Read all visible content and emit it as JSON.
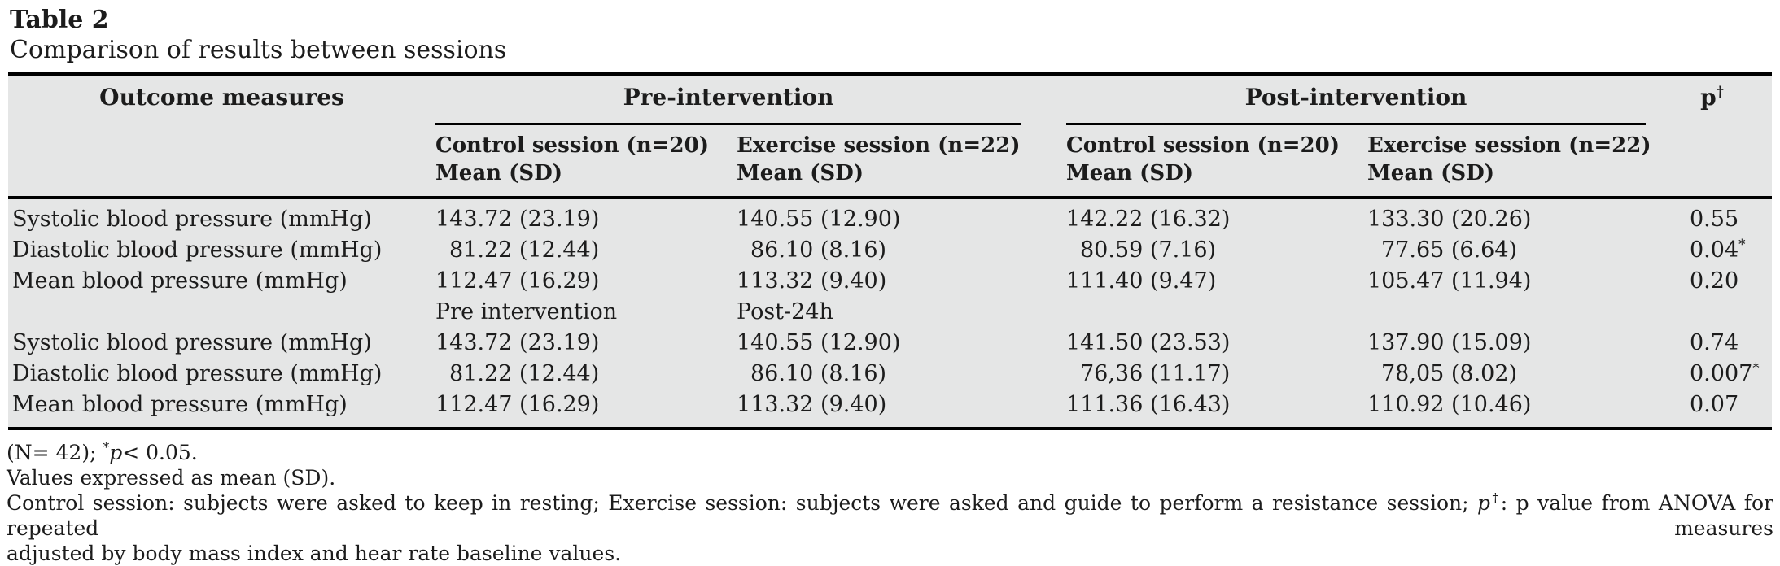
{
  "title": "Table 2",
  "subtitle": "Comparison of results between sessions",
  "colors": {
    "table_background": "#e5e6e6",
    "text": "#1c1c1c",
    "rule": "#000000"
  },
  "table": {
    "outcome_header": "Outcome measures",
    "pre_group_header": "Pre-intervention",
    "post_group_header": "Post-intervention",
    "p_header": "p",
    "p_header_sup": "†",
    "subheaders": {
      "pre_control_line1": "Control session (n=20)",
      "pre_control_line2": "Mean (SD)",
      "pre_exercise_line1": "Exercise session (n=22)",
      "pre_exercise_line2": "Mean (SD)",
      "post_control_line1": "Control session (n=20)",
      "post_control_line2": "Mean (SD)",
      "post_exercise_line1": "Exercise session (n=22)",
      "post_exercise_line2": "Mean (SD)"
    },
    "rows": [
      {
        "outcome": "Systolic blood pressure (mmHg)",
        "pre_control": "143.72 (23.19)",
        "pre_exercise": "140.55 (12.90)",
        "post_control": "142.22 (16.32)",
        "post_exercise": "133.30 (20.26)",
        "p": "0.55",
        "p_sup": ""
      },
      {
        "outcome": "Diastolic blood pressure (mmHg)",
        "pre_control": "81.22 (12.44)",
        "pre_exercise": "86.10 (8.16)",
        "post_control": "80.59 (7.16)",
        "post_exercise": "77.65 (6.64)",
        "p": "0.04",
        "p_sup": "*"
      },
      {
        "outcome": "Mean blood pressure (mmHg)",
        "pre_control": "112.47 (16.29)",
        "pre_exercise": "113.32 (9.40)",
        "post_control": "111.40 (9.47)",
        "post_exercise": "105.47 (11.94)",
        "p": "0.20",
        "p_sup": ""
      },
      {
        "outcome": "",
        "pre_control": "Pre intervention",
        "pre_exercise": "Post-24h",
        "post_control": "",
        "post_exercise": "",
        "p": "",
        "p_sup": ""
      },
      {
        "outcome": "Systolic blood pressure (mmHg)",
        "pre_control": "143.72 (23.19)",
        "pre_exercise": "140.55 (12.90)",
        "post_control": "141.50 (23.53)",
        "post_exercise": "137.90 (15.09)",
        "p": "0.74",
        "p_sup": ""
      },
      {
        "outcome": "Diastolic blood pressure (mmHg)",
        "pre_control": "81.22 (12.44)",
        "pre_exercise": "86.10 (8.16)",
        "post_control": "76,36 (11.17)",
        "post_exercise": "78,05 (8.02)",
        "p": "0.007",
        "p_sup": "*"
      },
      {
        "outcome": "Mean blood pressure (mmHg)",
        "pre_control": "112.47 (16.29)",
        "pre_exercise": "113.32 (9.40)",
        "post_control": "111.36 (16.43)",
        "post_exercise": "110.92 (10.46)",
        "p": "0.07",
        "p_sup": ""
      }
    ]
  },
  "footnotes": {
    "line1": {
      "pre": "(N= 42); ",
      "sup": "*",
      "italic": "p",
      "post": "< 0.05."
    },
    "line2": "Values expressed as mean (SD).",
    "line3a": {
      "pre": "Control session: subjects were asked to keep in resting; Exercise session: subjects were asked and guide to perform a resistance session; ",
      "italic": "p",
      "sup": "†",
      "post": ": p value from ANOVA for repeated measures"
    },
    "line3b": "adjusted by body mass index and hear rate baseline values."
  }
}
